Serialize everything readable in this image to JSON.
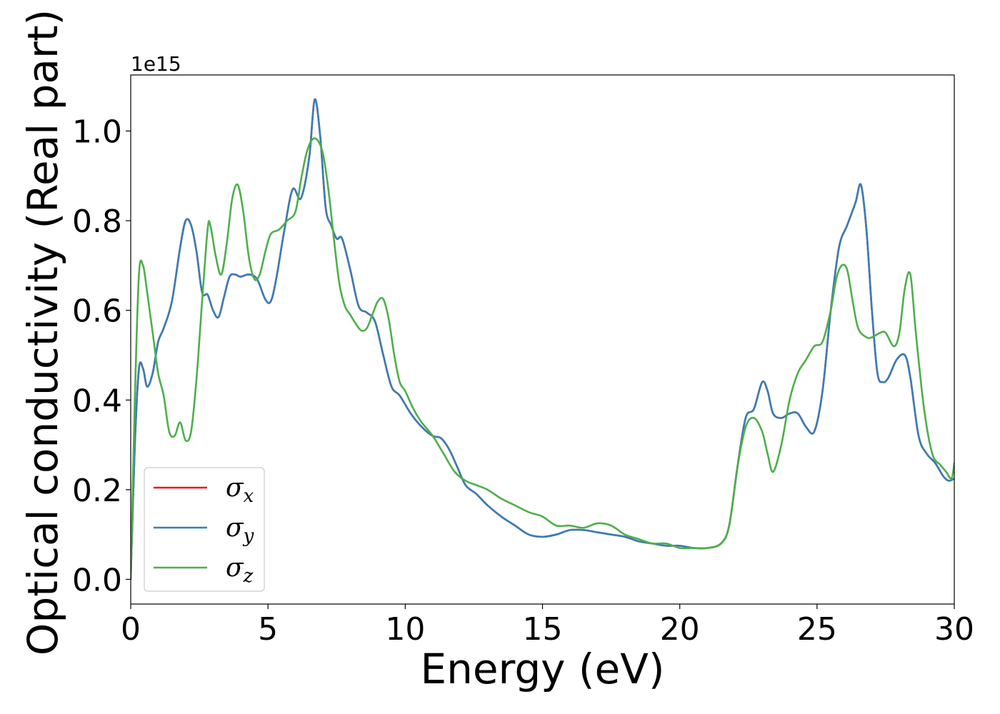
{
  "chart_data": {
    "type": "line",
    "xlabel": "Energy (eV)",
    "ylabel": "Optical conductivity (Real part)",
    "y_offset_label": "1e15",
    "xlim": [
      0,
      30
    ],
    "ylim": [
      -0.055,
      1.125
    ],
    "x_ticks": [
      0,
      5,
      10,
      15,
      20,
      25,
      30
    ],
    "x_tick_labels": [
      "0",
      "5",
      "10",
      "15",
      "20",
      "25",
      "30"
    ],
    "y_ticks": [
      0.0,
      0.2,
      0.4,
      0.6,
      0.8,
      1.0
    ],
    "y_tick_labels": [
      "0.0",
      "0.2",
      "0.4",
      "0.6",
      "0.8",
      "1.0"
    ],
    "grid": false,
    "legend_position": "lower-left",
    "series": [
      {
        "name": "σx",
        "label_main": "σ",
        "label_sub": "x",
        "color": "#e41a1c",
        "x": [
          0,
          0.15,
          0.3,
          0.45,
          0.6,
          0.8,
          1.0,
          1.2,
          1.5,
          1.8,
          2.0,
          2.2,
          2.4,
          2.6,
          2.8,
          3.0,
          3.2,
          3.4,
          3.6,
          3.8,
          4.0,
          4.3,
          4.6,
          4.9,
          5.1,
          5.3,
          5.6,
          5.9,
          6.2,
          6.5,
          6.7,
          6.9,
          7.1,
          7.3,
          7.5,
          7.7,
          8.0,
          8.3,
          8.6,
          8.9,
          9.2,
          9.5,
          9.8,
          10.2,
          10.6,
          11.0,
          11.3,
          11.6,
          11.9,
          12.2,
          12.6,
          13.0,
          13.5,
          14.0,
          14.5,
          15.0,
          15.5,
          16.0,
          16.5,
          17.0,
          17.5,
          18.0,
          18.5,
          19.0,
          19.5,
          20.0,
          20.5,
          21.0,
          21.5,
          21.8,
          22.1,
          22.4,
          22.7,
          23.0,
          23.2,
          23.4,
          23.7,
          24.0,
          24.3,
          24.6,
          24.9,
          25.2,
          25.5,
          25.8,
          26.1,
          26.4,
          26.6,
          26.8,
          27.0,
          27.2,
          27.4,
          27.6,
          27.9,
          28.2,
          28.4,
          28.7,
          29.0,
          29.3,
          29.6,
          29.8,
          30.0
        ],
        "values": [
          0.0,
          0.3,
          0.47,
          0.47,
          0.43,
          0.46,
          0.53,
          0.56,
          0.62,
          0.74,
          0.8,
          0.79,
          0.73,
          0.64,
          0.635,
          0.6,
          0.585,
          0.63,
          0.675,
          0.68,
          0.675,
          0.68,
          0.67,
          0.625,
          0.62,
          0.67,
          0.78,
          0.87,
          0.85,
          0.94,
          1.07,
          0.99,
          0.83,
          0.79,
          0.76,
          0.76,
          0.69,
          0.61,
          0.595,
          0.575,
          0.5,
          0.43,
          0.41,
          0.37,
          0.34,
          0.32,
          0.315,
          0.29,
          0.25,
          0.21,
          0.19,
          0.165,
          0.14,
          0.12,
          0.1,
          0.095,
          0.1,
          0.11,
          0.11,
          0.105,
          0.1,
          0.095,
          0.085,
          0.08,
          0.075,
          0.075,
          0.07,
          0.07,
          0.08,
          0.12,
          0.25,
          0.36,
          0.38,
          0.44,
          0.42,
          0.37,
          0.36,
          0.37,
          0.37,
          0.34,
          0.33,
          0.42,
          0.6,
          0.74,
          0.79,
          0.84,
          0.88,
          0.78,
          0.6,
          0.46,
          0.44,
          0.45,
          0.49,
          0.5,
          0.45,
          0.32,
          0.28,
          0.26,
          0.23,
          0.22,
          0.225
        ]
      },
      {
        "name": "σy",
        "label_main": "σ",
        "label_sub": "y",
        "color": "#377eb8",
        "x": [
          0,
          0.15,
          0.3,
          0.45,
          0.6,
          0.8,
          1.0,
          1.2,
          1.5,
          1.8,
          2.0,
          2.2,
          2.4,
          2.6,
          2.8,
          3.0,
          3.2,
          3.4,
          3.6,
          3.8,
          4.0,
          4.3,
          4.6,
          4.9,
          5.1,
          5.3,
          5.6,
          5.9,
          6.2,
          6.5,
          6.7,
          6.9,
          7.1,
          7.3,
          7.5,
          7.7,
          8.0,
          8.3,
          8.6,
          8.9,
          9.2,
          9.5,
          9.8,
          10.2,
          10.6,
          11.0,
          11.3,
          11.6,
          11.9,
          12.2,
          12.6,
          13.0,
          13.5,
          14.0,
          14.5,
          15.0,
          15.5,
          16.0,
          16.5,
          17.0,
          17.5,
          18.0,
          18.5,
          19.0,
          19.5,
          20.0,
          20.5,
          21.0,
          21.5,
          21.8,
          22.1,
          22.4,
          22.7,
          23.0,
          23.2,
          23.4,
          23.7,
          24.0,
          24.3,
          24.6,
          24.9,
          25.2,
          25.5,
          25.8,
          26.1,
          26.4,
          26.6,
          26.8,
          27.0,
          27.2,
          27.4,
          27.6,
          27.9,
          28.2,
          28.4,
          28.7,
          29.0,
          29.3,
          29.6,
          29.8,
          30.0
        ],
        "values": [
          0.0,
          0.3,
          0.47,
          0.47,
          0.43,
          0.46,
          0.53,
          0.56,
          0.62,
          0.74,
          0.8,
          0.79,
          0.73,
          0.64,
          0.635,
          0.6,
          0.585,
          0.63,
          0.675,
          0.68,
          0.675,
          0.68,
          0.67,
          0.625,
          0.62,
          0.67,
          0.78,
          0.87,
          0.85,
          0.94,
          1.07,
          0.99,
          0.83,
          0.79,
          0.76,
          0.76,
          0.69,
          0.61,
          0.595,
          0.575,
          0.5,
          0.43,
          0.41,
          0.37,
          0.34,
          0.32,
          0.315,
          0.29,
          0.25,
          0.21,
          0.19,
          0.165,
          0.14,
          0.12,
          0.1,
          0.095,
          0.1,
          0.11,
          0.11,
          0.105,
          0.1,
          0.095,
          0.085,
          0.08,
          0.075,
          0.075,
          0.07,
          0.07,
          0.08,
          0.12,
          0.25,
          0.36,
          0.38,
          0.44,
          0.42,
          0.37,
          0.36,
          0.37,
          0.37,
          0.34,
          0.33,
          0.42,
          0.6,
          0.74,
          0.79,
          0.84,
          0.88,
          0.78,
          0.6,
          0.46,
          0.44,
          0.45,
          0.49,
          0.5,
          0.45,
          0.32,
          0.28,
          0.26,
          0.23,
          0.22,
          0.225
        ]
      },
      {
        "name": "σz",
        "label_main": "σ",
        "label_sub": "z",
        "color": "#4daf4a",
        "x": [
          0,
          0.15,
          0.3,
          0.45,
          0.6,
          0.8,
          1.0,
          1.2,
          1.4,
          1.6,
          1.8,
          2.0,
          2.2,
          2.4,
          2.6,
          2.8,
          2.9,
          3.1,
          3.3,
          3.5,
          3.7,
          3.9,
          4.1,
          4.3,
          4.5,
          4.7,
          4.9,
          5.1,
          5.4,
          5.7,
          6.0,
          6.2,
          6.4,
          6.6,
          6.8,
          7.0,
          7.2,
          7.4,
          7.6,
          7.8,
          8.0,
          8.2,
          8.4,
          8.6,
          8.8,
          9.0,
          9.2,
          9.4,
          9.6,
          9.8,
          10.0,
          10.3,
          10.6,
          11.0,
          11.4,
          11.8,
          12.2,
          12.6,
          13.0,
          13.5,
          14.0,
          14.5,
          15.0,
          15.5,
          16.0,
          16.5,
          17.0,
          17.5,
          18.0,
          18.5,
          19.0,
          19.5,
          20.0,
          20.5,
          21.0,
          21.5,
          21.8,
          22.1,
          22.4,
          22.7,
          23.0,
          23.2,
          23.4,
          23.7,
          24.0,
          24.3,
          24.6,
          24.9,
          25.2,
          25.5,
          25.7,
          25.9,
          26.1,
          26.3,
          26.5,
          26.8,
          27.0,
          27.3,
          27.5,
          27.8,
          28.0,
          28.2,
          28.4,
          28.6,
          28.9,
          29.2,
          29.5,
          29.7,
          29.9,
          30.0
        ],
        "values": [
          0.0,
          0.4,
          0.68,
          0.7,
          0.64,
          0.55,
          0.46,
          0.41,
          0.33,
          0.32,
          0.35,
          0.31,
          0.33,
          0.45,
          0.62,
          0.78,
          0.79,
          0.72,
          0.68,
          0.75,
          0.85,
          0.88,
          0.82,
          0.72,
          0.67,
          0.68,
          0.73,
          0.77,
          0.78,
          0.8,
          0.82,
          0.89,
          0.95,
          0.98,
          0.98,
          0.95,
          0.87,
          0.76,
          0.66,
          0.61,
          0.59,
          0.57,
          0.555,
          0.56,
          0.59,
          0.62,
          0.625,
          0.58,
          0.5,
          0.44,
          0.42,
          0.38,
          0.35,
          0.32,
          0.28,
          0.24,
          0.22,
          0.21,
          0.2,
          0.18,
          0.165,
          0.15,
          0.14,
          0.12,
          0.12,
          0.115,
          0.125,
          0.12,
          0.1,
          0.09,
          0.08,
          0.08,
          0.07,
          0.07,
          0.07,
          0.08,
          0.12,
          0.25,
          0.34,
          0.36,
          0.33,
          0.28,
          0.24,
          0.3,
          0.4,
          0.46,
          0.49,
          0.52,
          0.53,
          0.6,
          0.67,
          0.7,
          0.69,
          0.62,
          0.56,
          0.54,
          0.54,
          0.55,
          0.55,
          0.52,
          0.55,
          0.65,
          0.68,
          0.55,
          0.38,
          0.28,
          0.255,
          0.24,
          0.225,
          0.26
        ]
      }
    ]
  }
}
